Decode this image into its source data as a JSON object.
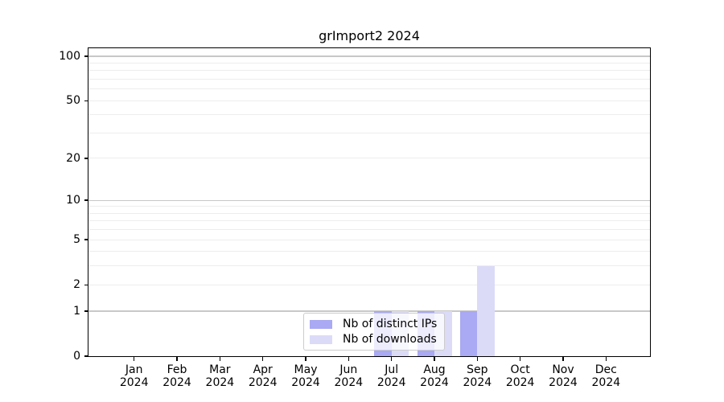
{
  "chart_data": {
    "type": "bar",
    "title": "grImport2 2024",
    "categories": [
      "Jan",
      "Feb",
      "Mar",
      "Apr",
      "May",
      "Jun",
      "Jul",
      "Aug",
      "Sep",
      "Oct",
      "Nov",
      "Dec"
    ],
    "x_year_label": "2024",
    "series": [
      {
        "name": "Nb of distinct IPs",
        "color": "#a9a9f4",
        "values": [
          0,
          0,
          0,
          0,
          0,
          0,
          1,
          1,
          1,
          0,
          0,
          0
        ]
      },
      {
        "name": "Nb of downloads",
        "color": "#dbdbf8",
        "values": [
          0,
          0,
          0,
          0,
          0,
          0,
          1,
          1,
          3,
          0,
          0,
          0
        ]
      }
    ],
    "y_axis": {
      "scale": "log1p",
      "ylim": [
        0,
        100
      ],
      "tick_values": [
        0,
        1,
        2,
        5,
        10,
        20,
        50,
        100
      ],
      "tick_labels": [
        "0",
        "1",
        "2",
        "5",
        "10",
        "20",
        "50",
        "100"
      ],
      "major_gridlines": [
        1,
        10,
        100
      ],
      "minor_gridlines": [
        2,
        3,
        4,
        5,
        6,
        7,
        8,
        9,
        20,
        30,
        40,
        50,
        60,
        70,
        80,
        90
      ]
    },
    "legend_position": "bottom-center-inside",
    "colors": {
      "grid_major": "#c8c8c8",
      "grid_minor": "#ededed",
      "axis": "#000000",
      "legend_border": "#cccccc"
    }
  }
}
